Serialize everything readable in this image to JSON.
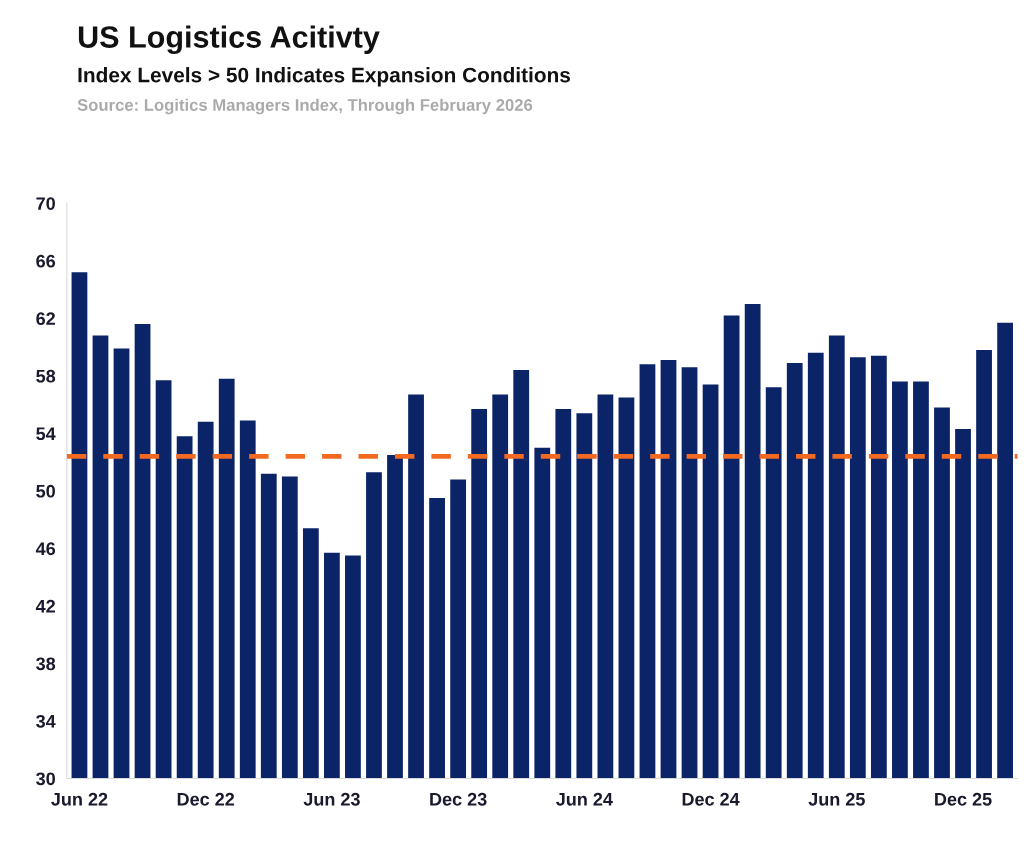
{
  "chart_data": {
    "type": "bar",
    "title": "US Logistics Acitivty",
    "subtitle": "Index Levels > 50 Indicates Expansion Conditions",
    "annotations": [
      "Source: Logitics Managers Index, Through February 2026"
    ],
    "categories": [
      "Jun 22",
      null,
      null,
      null,
      null,
      null,
      "Dec 22",
      null,
      null,
      null,
      null,
      null,
      "Jun 23",
      null,
      null,
      null,
      null,
      null,
      "Dec 23",
      null,
      null,
      null,
      null,
      null,
      "Jun 24",
      null,
      null,
      null,
      null,
      null,
      "Dec 24",
      null,
      null,
      null,
      null,
      null,
      "Jun 25",
      null,
      null,
      null,
      null,
      null,
      "Dec 25",
      null,
      null
    ],
    "values": [
      65.2,
      60.8,
      59.9,
      61.6,
      57.7,
      53.8,
      54.8,
      57.8,
      54.9,
      51.2,
      51.0,
      47.4,
      45.7,
      45.5,
      51.3,
      52.5,
      56.7,
      49.5,
      50.8,
      55.7,
      56.7,
      58.4,
      53.0,
      55.7,
      55.4,
      56.7,
      56.5,
      58.8,
      59.1,
      58.6,
      57.4,
      62.2,
      63.0,
      57.2,
      58.9,
      59.6,
      60.8,
      59.3,
      59.4,
      57.6,
      57.6,
      55.8,
      54.3,
      59.8,
      61.7
    ],
    "color": "#0b2468",
    "ylim": [
      30,
      70
    ],
    "yticks": [
      30,
      34,
      38,
      42,
      46,
      50,
      54,
      58,
      62,
      66,
      70
    ],
    "ref_lines": [
      {
        "axis": "y",
        "value": 52.4,
        "color": "#f26a21",
        "line_style": "dashed"
      }
    ],
    "grid": false,
    "legend": false
  }
}
